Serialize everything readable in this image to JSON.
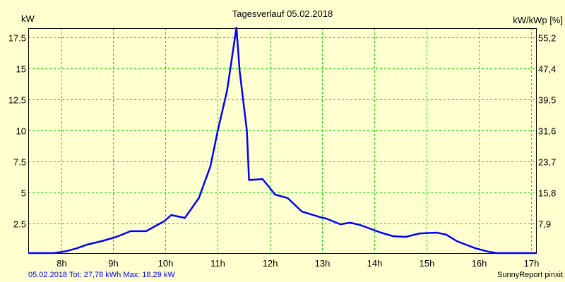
{
  "chart_data": {
    "type": "line",
    "title": "Tagesverlauf 05.02.2018",
    "ylabel": "kW",
    "ylabel_right": "kW/kWp [%]",
    "xlim": [
      7.37,
      17.1
    ],
    "ylim": [
      0,
      18.24
    ],
    "x_ticks": [
      8,
      9,
      10,
      11,
      12,
      13,
      14,
      15,
      16,
      17
    ],
    "x_tick_labels": [
      "8h",
      "9h",
      "10h",
      "11h",
      "12h",
      "13h",
      "14h",
      "15h",
      "16h",
      "17h"
    ],
    "y_ticks": [
      2.5,
      5,
      7.5,
      10,
      12.5,
      15,
      17.5
    ],
    "y_tick_labels": [
      "2.5",
      "5",
      "7.5",
      "10",
      "12.5",
      "15",
      "17.5"
    ],
    "y_right_tick_labels": [
      "7,9",
      "15,8",
      "23,7",
      "31,6",
      "39,5",
      "47,4",
      "55,2"
    ],
    "grid": true,
    "series": [
      {
        "name": "kW",
        "color": "#0000ff",
        "x": [
          7.37,
          7.86,
          8.11,
          8.3,
          8.5,
          8.78,
          9.06,
          9.33,
          9.63,
          9.98,
          10.11,
          10.37,
          10.64,
          10.86,
          11.0,
          11.18,
          11.36,
          11.42,
          11.56,
          11.6,
          11.86,
          12.1,
          12.34,
          12.61,
          12.97,
          13.08,
          13.35,
          13.54,
          13.72,
          14.13,
          14.36,
          14.6,
          14.87,
          15.2,
          15.38,
          15.58,
          15.94,
          16.19,
          16.35,
          17.1
        ],
        "y": [
          0,
          0,
          0.28,
          0.5,
          0.8,
          1.08,
          1.42,
          1.88,
          1.88,
          2.7,
          3.18,
          2.95,
          4.55,
          7.1,
          9.95,
          13.2,
          18.29,
          14.8,
          9.95,
          6.0,
          6.08,
          4.83,
          4.55,
          3.47,
          3.0,
          2.9,
          2.44,
          2.56,
          2.39,
          1.76,
          1.48,
          1.42,
          1.7,
          1.76,
          1.6,
          1.08,
          0.5,
          0.22,
          0,
          0
        ]
      }
    ],
    "grid_color": "#00e000",
    "background": "#ffffd0"
  },
  "footer": {
    "summary": "05.02.2018 Tot: 27,76 kWh Max: 18,29 kW",
    "brand": "SunnyReport pinxit"
  }
}
